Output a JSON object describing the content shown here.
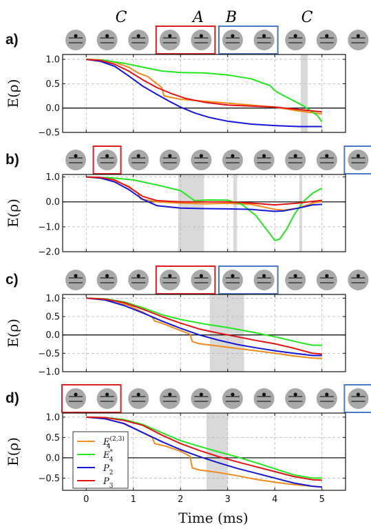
{
  "figure": {
    "xlabel": "Time (ms)",
    "ylabel": "E(ρ)",
    "legend": [
      {
        "key": "E4_23",
        "label_main": "E",
        "label_sub": "4",
        "label_sup": "(2,3)",
        "color": "#f08a1c"
      },
      {
        "key": "E4_star",
        "label_main": "E",
        "label_sub": "4",
        "label_sup": "*",
        "color": "#22e61e"
      },
      {
        "key": "P2",
        "label_main": "P",
        "label_sub": "2",
        "label_sup": "",
        "color": "#1515d6"
      },
      {
        "key": "P3",
        "label_main": "P",
        "label_sub": "3",
        "label_sup": "",
        "color": "#e01414"
      }
    ],
    "colors": {
      "E4_23": "#f08a1c",
      "E4_star": "#22e61e",
      "P2": "#1515d6",
      "P3": "#e01414",
      "box_A": "#d91f1f",
      "box_B": "#4a78c2",
      "shade": "#d9d9d9",
      "ion": "#a8a8a8"
    },
    "region_labels": [
      {
        "text": "C",
        "color": "#111111",
        "position": "top-left"
      },
      {
        "text": "A",
        "color": "#d91f1f",
        "position": "top"
      },
      {
        "text": "B",
        "color": "#4a78c2",
        "position": "top"
      },
      {
        "text": "C",
        "color": "#111111",
        "position": "top-right"
      }
    ],
    "ions_per_row": 11
  },
  "chart_data": [
    {
      "type": "line",
      "panel": "a)",
      "xlim": [
        -0.5,
        5.5
      ],
      "ylim": [
        -0.5,
        1.1
      ],
      "xticks": [
        "0",
        "1",
        "2",
        "3",
        "4",
        "5"
      ],
      "yticks": [
        "1.0",
        "0.5",
        "0.0",
        "−0.5"
      ],
      "ytick_values": [
        1.0,
        0.5,
        0.0,
        -0.5
      ],
      "box_A": [
        3,
        4
      ],
      "box_B": [
        5,
        6
      ],
      "shaded": [
        [
          4.55,
          4.7
        ]
      ],
      "series": [
        {
          "key": "E4_23",
          "x": [
            0,
            0.3,
            0.6,
            0.9,
            1.1,
            1.3,
            1.5,
            1.6,
            1.65,
            2.0,
            2.5,
            3.0,
            3.5,
            4.0,
            4.5,
            5.0
          ],
          "y": [
            1.0,
            0.99,
            0.94,
            0.84,
            0.72,
            0.65,
            0.5,
            0.42,
            0.25,
            0.18,
            0.14,
            0.1,
            0.06,
            0.02,
            -0.06,
            -0.12
          ]
        },
        {
          "key": "E4_star",
          "x": [
            0,
            0.4,
            0.8,
            1.2,
            1.6,
            2.0,
            2.5,
            3.0,
            3.5,
            3.9,
            4.0,
            4.1,
            4.3,
            4.6,
            4.9,
            5.0
          ],
          "y": [
            1.0,
            0.98,
            0.92,
            0.84,
            0.76,
            0.73,
            0.72,
            0.68,
            0.6,
            0.46,
            0.36,
            0.3,
            0.2,
            0.05,
            -0.15,
            -0.28
          ]
        },
        {
          "key": "P2",
          "x": [
            0,
            0.3,
            0.6,
            0.9,
            1.2,
            1.5,
            1.8,
            2.0,
            2.3,
            2.6,
            3.0,
            3.5,
            4.0,
            4.5,
            5.0
          ],
          "y": [
            1.0,
            0.96,
            0.86,
            0.66,
            0.45,
            0.28,
            0.12,
            0.02,
            -0.1,
            -0.19,
            -0.27,
            -0.33,
            -0.36,
            -0.38,
            -0.38
          ]
        },
        {
          "key": "P3",
          "x": [
            0,
            0.3,
            0.6,
            0.9,
            1.2,
            1.5,
            1.8,
            2.1,
            2.5,
            3.0,
            3.5,
            4.0,
            4.5,
            5.0
          ],
          "y": [
            1.0,
            0.98,
            0.9,
            0.76,
            0.58,
            0.42,
            0.3,
            0.2,
            0.12,
            0.06,
            0.04,
            0.02,
            -0.03,
            -0.08
          ]
        }
      ]
    },
    {
      "type": "line",
      "panel": "b)",
      "xlim": [
        -0.5,
        5.5
      ],
      "ylim": [
        -2.0,
        1.1
      ],
      "xticks": [
        "0",
        "1",
        "2",
        "3",
        "4",
        "5"
      ],
      "yticks": [
        "1.0",
        "0.0",
        "−1.0",
        "−2.0"
      ],
      "ytick_values": [
        1.0,
        0.0,
        -1.0,
        -2.0
      ],
      "box_A": [
        1,
        1
      ],
      "box_B": [
        9,
        9
      ],
      "shaded": [
        [
          1.95,
          2.5
        ],
        [
          3.12,
          3.2
        ],
        [
          4.52,
          4.58
        ]
      ],
      "series": [
        {
          "key": "E4_23",
          "x": [
            0,
            0.5,
            0.9,
            1.0,
            1.1,
            1.15,
            1.5,
            2.0,
            2.5,
            3.0,
            3.5,
            3.8,
            4.0,
            4.2,
            4.5,
            4.8,
            5.0
          ],
          "y": [
            1.0,
            0.92,
            0.63,
            0.48,
            0.35,
            0.12,
            0.0,
            -0.05,
            -0.08,
            -0.06,
            -0.1,
            -0.22,
            -0.3,
            -0.33,
            -0.25,
            -0.05,
            0.02
          ]
        },
        {
          "key": "E4_star",
          "x": [
            0,
            0.5,
            1.0,
            1.5,
            2.0,
            2.3,
            2.6,
            3.0,
            3.3,
            3.6,
            3.8,
            4.0,
            4.1,
            4.25,
            4.4,
            4.6,
            4.8,
            5.0
          ],
          "y": [
            1.0,
            0.97,
            0.88,
            0.68,
            0.45,
            0.05,
            0.08,
            0.07,
            -0.1,
            -0.55,
            -1.05,
            -1.55,
            -1.5,
            -1.1,
            -0.55,
            0.0,
            0.35,
            0.55
          ]
        },
        {
          "key": "P2",
          "x": [
            0,
            0.3,
            0.6,
            0.9,
            1.2,
            1.5,
            2.0,
            2.5,
            3.0,
            3.5,
            3.8,
            4.0,
            4.2,
            4.5,
            4.8,
            5.0
          ],
          "y": [
            1.0,
            0.96,
            0.8,
            0.5,
            0.1,
            -0.15,
            -0.25,
            -0.27,
            -0.28,
            -0.3,
            -0.35,
            -0.38,
            -0.36,
            -0.25,
            -0.12,
            -0.1
          ]
        },
        {
          "key": "P3",
          "x": [
            0,
            0.3,
            0.6,
            0.9,
            1.2,
            1.5,
            2.0,
            2.5,
            3.0,
            3.5,
            4.0,
            4.5,
            4.8,
            5.0
          ],
          "y": [
            1.0,
            0.98,
            0.88,
            0.6,
            0.22,
            0.05,
            0.0,
            0.0,
            0.0,
            -0.05,
            -0.12,
            -0.05,
            0.02,
            0.06
          ]
        }
      ]
    },
    {
      "type": "line",
      "panel": "c)",
      "xlim": [
        -0.5,
        5.5
      ],
      "ylim": [
        -1.0,
        1.1
      ],
      "xticks": [
        "0",
        "1",
        "2",
        "3",
        "4",
        "5"
      ],
      "yticks": [
        "1.0",
        "0.5",
        "0.0",
        "−0.5",
        "−1.0"
      ],
      "ytick_values": [
        1.0,
        0.5,
        0.0,
        -0.5,
        -1.0
      ],
      "box_A": [
        3,
        4
      ],
      "box_B": [
        5,
        6
      ],
      "shaded": [
        [
          2.62,
          3.35
        ]
      ],
      "series": [
        {
          "key": "E4_23",
          "x": [
            0,
            0.3,
            0.6,
            0.9,
            1.2,
            1.4,
            1.45,
            1.6,
            1.8,
            2.0,
            2.2,
            2.25,
            2.4,
            2.8,
            3.2,
            3.6,
            4.0,
            4.4,
            4.8,
            5.0
          ],
          "y": [
            1.0,
            0.98,
            0.92,
            0.8,
            0.62,
            0.48,
            0.38,
            0.32,
            0.22,
            0.12,
            0.02,
            -0.18,
            -0.24,
            -0.3,
            -0.37,
            -0.43,
            -0.5,
            -0.57,
            -0.63,
            -0.64
          ]
        },
        {
          "key": "E4_star",
          "x": [
            0,
            0.4,
            0.8,
            1.2,
            1.6,
            2.0,
            2.5,
            3.0,
            3.5,
            4.0,
            4.5,
            4.8,
            5.0
          ],
          "y": [
            1.0,
            0.98,
            0.9,
            0.74,
            0.55,
            0.42,
            0.3,
            0.2,
            0.08,
            -0.05,
            -0.2,
            -0.28,
            -0.28
          ]
        },
        {
          "key": "P2",
          "x": [
            0,
            0.4,
            0.8,
            1.2,
            1.6,
            2.0,
            2.4,
            2.8,
            3.2,
            3.6,
            4.0,
            4.4,
            4.8,
            5.0
          ],
          "y": [
            1.0,
            0.95,
            0.8,
            0.6,
            0.38,
            0.18,
            0.0,
            -0.14,
            -0.26,
            -0.35,
            -0.43,
            -0.5,
            -0.56,
            -0.56
          ]
        },
        {
          "key": "P3",
          "x": [
            0,
            0.4,
            0.8,
            1.2,
            1.6,
            2.0,
            2.4,
            2.8,
            3.2,
            3.6,
            4.0,
            4.4,
            4.8,
            5.0
          ],
          "y": [
            1.0,
            0.97,
            0.88,
            0.7,
            0.5,
            0.32,
            0.16,
            0.05,
            -0.05,
            -0.15,
            -0.24,
            -0.36,
            -0.5,
            -0.52
          ]
        }
      ]
    },
    {
      "type": "line",
      "panel": "d)",
      "xlim": [
        -0.5,
        5.5
      ],
      "ylim": [
        -0.8,
        1.1
      ],
      "xticks": [
        "0",
        "1",
        "2",
        "3",
        "4",
        "5"
      ],
      "yticks": [
        "1.0",
        "0.5",
        "0.0",
        "−0.5"
      ],
      "ytick_values": [
        1.0,
        0.5,
        0.0,
        -0.5
      ],
      "box_A": [
        0,
        1
      ],
      "box_B": [
        9,
        10
      ],
      "shaded": [
        [
          2.55,
          3.0
        ]
      ],
      "series": [
        {
          "key": "E4_23",
          "x": [
            0,
            0.4,
            0.8,
            1.2,
            1.4,
            1.45,
            1.7,
            2.0,
            2.2,
            2.25,
            2.4,
            2.8,
            3.2,
            3.6,
            4.0,
            4.4,
            4.8,
            5.0
          ],
          "y": [
            1.0,
            0.96,
            0.85,
            0.62,
            0.5,
            0.35,
            0.28,
            0.16,
            0.04,
            -0.25,
            -0.3,
            -0.36,
            -0.44,
            -0.53,
            -0.6,
            -0.66,
            -0.7,
            -0.72
          ]
        },
        {
          "key": "E4_star",
          "x": [
            0,
            0.4,
            0.8,
            1.2,
            1.6,
            2.0,
            2.4,
            2.8,
            3.2,
            3.6,
            4.0,
            4.4,
            4.8,
            5.0
          ],
          "y": [
            1.0,
            0.99,
            0.94,
            0.82,
            0.62,
            0.42,
            0.28,
            0.15,
            0.02,
            -0.12,
            -0.27,
            -0.42,
            -0.5,
            -0.5
          ]
        },
        {
          "key": "P2",
          "x": [
            0,
            0.4,
            0.8,
            1.2,
            1.6,
            2.0,
            2.4,
            2.8,
            3.2,
            3.6,
            4.0,
            4.4,
            4.8,
            5.0
          ],
          "y": [
            1.0,
            0.96,
            0.84,
            0.62,
            0.4,
            0.2,
            0.03,
            -0.12,
            -0.26,
            -0.38,
            -0.5,
            -0.62,
            -0.7,
            -0.72
          ]
        },
        {
          "key": "P3",
          "x": [
            0,
            0.4,
            0.8,
            1.2,
            1.6,
            2.0,
            2.4,
            2.8,
            3.2,
            3.6,
            4.0,
            4.4,
            4.8,
            5.0
          ],
          "y": [
            1.0,
            0.99,
            0.92,
            0.8,
            0.56,
            0.35,
            0.18,
            0.03,
            -0.1,
            -0.22,
            -0.34,
            -0.46,
            -0.54,
            -0.55
          ]
        }
      ]
    }
  ]
}
